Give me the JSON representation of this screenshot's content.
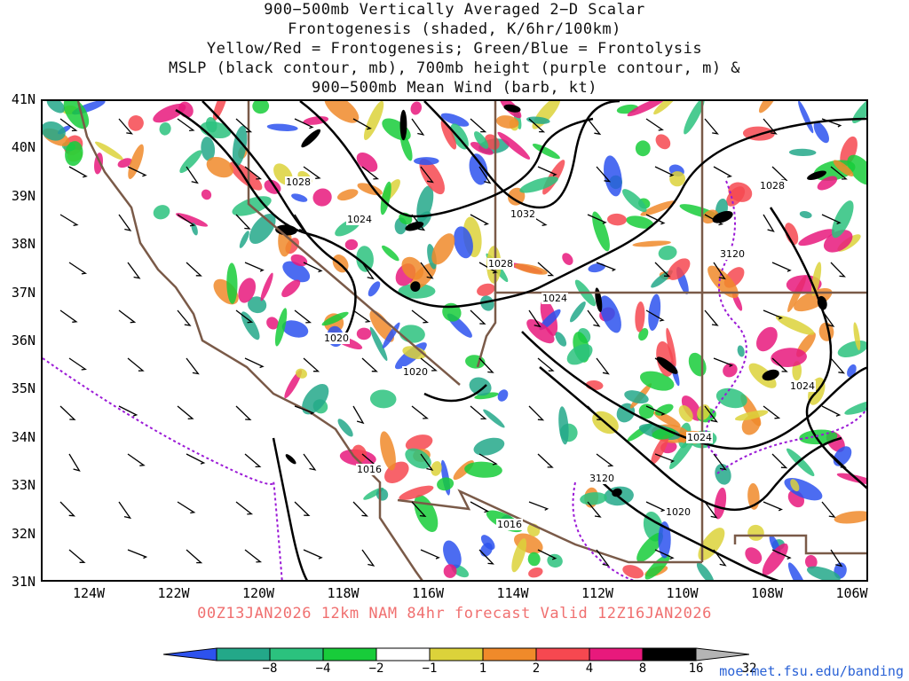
{
  "title": {
    "line1": "900−500mb Vertically Averaged 2−D Scalar",
    "line2": "Frontogenesis (shaded, K/6hr/100km)",
    "line3": "Yellow/Red = Frontogenesis;  Green/Blue = Frontolysis",
    "line4": "MSLP (black contour, mb), 700mb height (purple contour, m) &",
    "line5": "900−500mb Mean Wind (barb, kt)"
  },
  "lat_labels": [
    "41N",
    "40N",
    "39N",
    "38N",
    "37N",
    "36N",
    "35N",
    "34N",
    "33N",
    "32N",
    "31N"
  ],
  "lon_labels": [
    "124W",
    "122W",
    "120W",
    "118W",
    "116W",
    "114W",
    "112W",
    "110W",
    "108W",
    "106W"
  ],
  "forecast_line": "00Z13JAN2026 12km NAM 84hr forecast Valid 12Z16JAN2026",
  "credit": "moe.met.fsu.edu/banding",
  "colorbar": {
    "labels": [
      "−8",
      "−4",
      "−2",
      "−1",
      "1",
      "2",
      "4",
      "8",
      "16",
      "32"
    ],
    "colors": [
      "#2d52ee",
      "#23a889",
      "#2bc27e",
      "#18cc3a",
      "#ffffff",
      "#dcd23a",
      "#f08a2a",
      "#f64850",
      "#e8197c",
      "#000000",
      "#b4b4b4"
    ]
  },
  "pressure_labels": [
    "1028",
    "1024",
    "1032",
    "1028",
    "1024",
    "1020",
    "1020",
    "1016",
    "1016",
    "1020",
    "1024",
    "1024",
    "1028"
  ],
  "height_labels": [
    "3120",
    "3120"
  ]
}
